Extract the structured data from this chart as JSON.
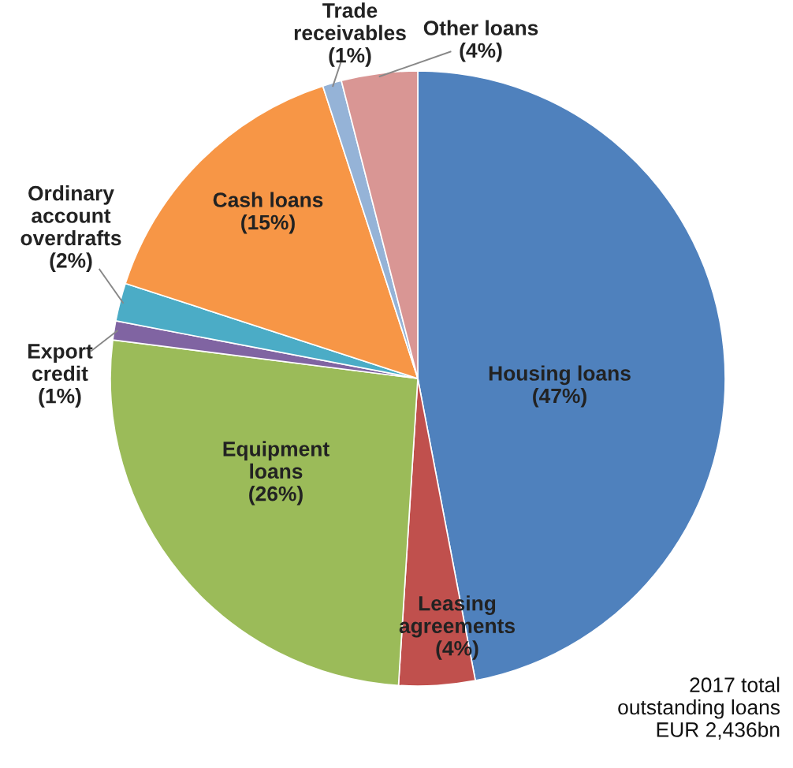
{
  "chart_data": {
    "type": "pie",
    "categories": [
      "Housing loans",
      "Leasing\nagreements",
      "Equipment\nloans",
      "Export\ncredit",
      "Ordinary\naccount\noverdrafts",
      "Cash loans",
      "Trade\nreceivables",
      "Other loans"
    ],
    "values": [
      47,
      4,
      26,
      1,
      2,
      15,
      1,
      4
    ],
    "value_labels": [
      "(47%)",
      "(4%)",
      "(26%)",
      "(1%)",
      "(2%)",
      "(15%)",
      "(1%)",
      "(4%)"
    ],
    "colors": [
      "#4f81bd",
      "#c0504d",
      "#9bbb59",
      "#8064a2",
      "#4bacc6",
      "#f79646",
      "#95b3d7",
      "#d99694"
    ],
    "annotations": [
      "2017 total\noutstanding loans\nEUR 2,436bn"
    ]
  }
}
